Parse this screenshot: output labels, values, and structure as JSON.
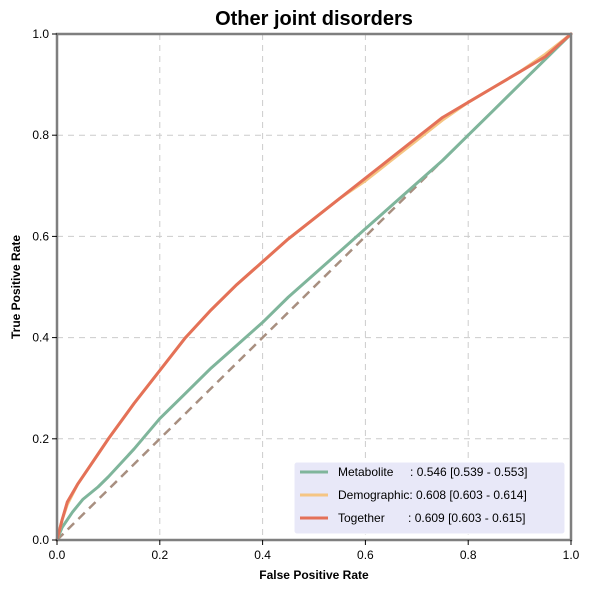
{
  "chart_data": {
    "type": "line",
    "title": "Other joint disorders",
    "xlabel": "False Positive Rate",
    "ylabel": "True Positive Rate",
    "xlim": [
      0,
      1
    ],
    "ylim": [
      0,
      1
    ],
    "x_ticks": [
      "0.0",
      "0.2",
      "0.4",
      "0.6",
      "0.8",
      "1.0"
    ],
    "y_ticks": [
      "0.0",
      "0.2",
      "0.4",
      "0.6",
      "0.8",
      "1.0"
    ],
    "grid": true,
    "legend_position": "bottom-right",
    "series": [
      {
        "name": "Metabolite",
        "legend_label": "Metabolite     : 0.546 [0.539 - 0.553]",
        "color": "#7fb59b",
        "x": [
          0,
          0.01,
          0.03,
          0.05,
          0.08,
          0.1,
          0.15,
          0.2,
          0.25,
          0.3,
          0.35,
          0.4,
          0.45,
          0.5,
          0.55,
          0.6,
          0.65,
          0.7,
          0.75,
          0.8,
          0.85,
          0.9,
          0.95,
          1.0
        ],
        "y": [
          0,
          0.025,
          0.055,
          0.08,
          0.105,
          0.125,
          0.18,
          0.24,
          0.29,
          0.34,
          0.385,
          0.43,
          0.48,
          0.525,
          0.57,
          0.615,
          0.66,
          0.705,
          0.75,
          0.8,
          0.85,
          0.9,
          0.95,
          1.0
        ]
      },
      {
        "name": "Demographic",
        "legend_label": "Demographic: 0.608 [0.603 - 0.614]",
        "color": "#f5c583",
        "x": [
          0,
          0.01,
          0.02,
          0.04,
          0.06,
          0.08,
          0.1,
          0.15,
          0.2,
          0.25,
          0.3,
          0.35,
          0.4,
          0.45,
          0.5,
          0.55,
          0.6,
          0.65,
          0.7,
          0.75,
          0.8,
          0.85,
          0.9,
          0.95,
          1.0
        ],
        "y": [
          0,
          0.04,
          0.07,
          0.11,
          0.14,
          0.17,
          0.2,
          0.27,
          0.335,
          0.4,
          0.455,
          0.505,
          0.55,
          0.595,
          0.635,
          0.675,
          0.71,
          0.75,
          0.79,
          0.83,
          0.865,
          0.895,
          0.925,
          0.96,
          1.0
        ]
      },
      {
        "name": "Together",
        "legend_label": "Together       : 0.609 [0.603 - 0.615]",
        "color": "#e47158",
        "x": [
          0,
          0.01,
          0.02,
          0.04,
          0.06,
          0.08,
          0.1,
          0.15,
          0.2,
          0.25,
          0.3,
          0.35,
          0.4,
          0.45,
          0.5,
          0.55,
          0.6,
          0.65,
          0.7,
          0.75,
          0.8,
          0.85,
          0.9,
          0.95,
          1.0
        ],
        "y": [
          0,
          0.04,
          0.075,
          0.11,
          0.14,
          0.17,
          0.2,
          0.27,
          0.335,
          0.4,
          0.455,
          0.505,
          0.55,
          0.595,
          0.635,
          0.675,
          0.715,
          0.755,
          0.795,
          0.835,
          0.865,
          0.895,
          0.925,
          0.955,
          1.0
        ]
      }
    ],
    "reference_line": {
      "x": [
        0,
        1
      ],
      "y": [
        0,
        1
      ],
      "color": "#a88f80",
      "style": "dashed"
    },
    "colors": {
      "grid": "#cccccc",
      "frame": "#7f7f7f",
      "legend_bg": "#e8e8f8"
    }
  }
}
